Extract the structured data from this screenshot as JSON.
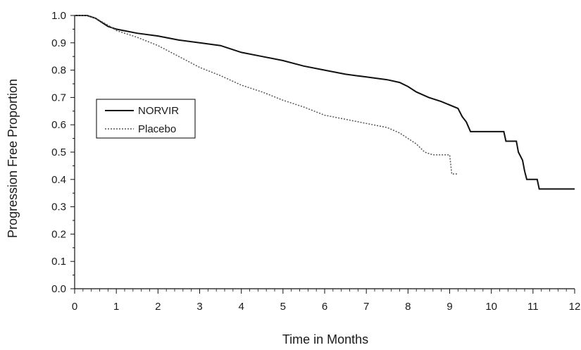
{
  "chart_data": {
    "type": "line",
    "title": "",
    "xlabel": "Time in Months",
    "ylabel": "Progression Free Proportion",
    "xlim": [
      0,
      12
    ],
    "ylim": [
      0,
      1.0
    ],
    "x_ticks": [
      "0",
      "1",
      "2",
      "3",
      "4",
      "5",
      "6",
      "7",
      "8",
      "9",
      "10",
      "11",
      "12"
    ],
    "y_ticks": [
      "0.0",
      "0.1",
      "0.2",
      "0.3",
      "0.4",
      "0.5",
      "0.6",
      "0.7",
      "0.8",
      "0.9",
      "1.0"
    ],
    "grid": false,
    "legend_position": "middle-left",
    "series": [
      {
        "name": "NORVIR",
        "line_style": "solid",
        "color": "#111111",
        "points": [
          [
            0,
            1.0
          ],
          [
            0.3,
            1.0
          ],
          [
            0.5,
            0.99
          ],
          [
            0.8,
            0.96
          ],
          [
            1.0,
            0.95
          ],
          [
            1.5,
            0.935
          ],
          [
            2.0,
            0.925
          ],
          [
            2.5,
            0.91
          ],
          [
            3.0,
            0.9
          ],
          [
            3.5,
            0.89
          ],
          [
            4.0,
            0.865
          ],
          [
            4.5,
            0.85
          ],
          [
            5.0,
            0.835
          ],
          [
            5.5,
            0.815
          ],
          [
            6.0,
            0.8
          ],
          [
            6.5,
            0.785
          ],
          [
            7.0,
            0.775
          ],
          [
            7.5,
            0.765
          ],
          [
            7.8,
            0.755
          ],
          [
            8.0,
            0.74
          ],
          [
            8.2,
            0.72
          ],
          [
            8.5,
            0.7
          ],
          [
            8.8,
            0.685
          ],
          [
            9.2,
            0.66
          ],
          [
            9.3,
            0.63
          ],
          [
            9.4,
            0.61
          ],
          [
            9.5,
            0.575
          ],
          [
            10.3,
            0.575
          ],
          [
            10.35,
            0.54
          ],
          [
            10.6,
            0.54
          ],
          [
            10.65,
            0.5
          ],
          [
            10.75,
            0.47
          ],
          [
            10.8,
            0.43
          ],
          [
            10.85,
            0.4
          ],
          [
            11.1,
            0.4
          ],
          [
            11.15,
            0.365
          ],
          [
            12.0,
            0.365
          ]
        ]
      },
      {
        "name": "Placebo",
        "line_style": "dotted",
        "color": "#555555",
        "points": [
          [
            0,
            1.0
          ],
          [
            0.3,
            1.0
          ],
          [
            0.5,
            0.99
          ],
          [
            0.8,
            0.965
          ],
          [
            1.0,
            0.945
          ],
          [
            1.5,
            0.92
          ],
          [
            2.0,
            0.89
          ],
          [
            2.5,
            0.85
          ],
          [
            3.0,
            0.81
          ],
          [
            3.5,
            0.78
          ],
          [
            4.0,
            0.745
          ],
          [
            4.5,
            0.72
          ],
          [
            5.0,
            0.69
          ],
          [
            5.5,
            0.665
          ],
          [
            6.0,
            0.635
          ],
          [
            6.5,
            0.62
          ],
          [
            7.0,
            0.605
          ],
          [
            7.5,
            0.59
          ],
          [
            7.8,
            0.57
          ],
          [
            8.0,
            0.55
          ],
          [
            8.2,
            0.53
          ],
          [
            8.4,
            0.5
          ],
          [
            8.6,
            0.49
          ],
          [
            9.0,
            0.49
          ],
          [
            9.05,
            0.42
          ],
          [
            9.2,
            0.42
          ]
        ]
      }
    ]
  }
}
